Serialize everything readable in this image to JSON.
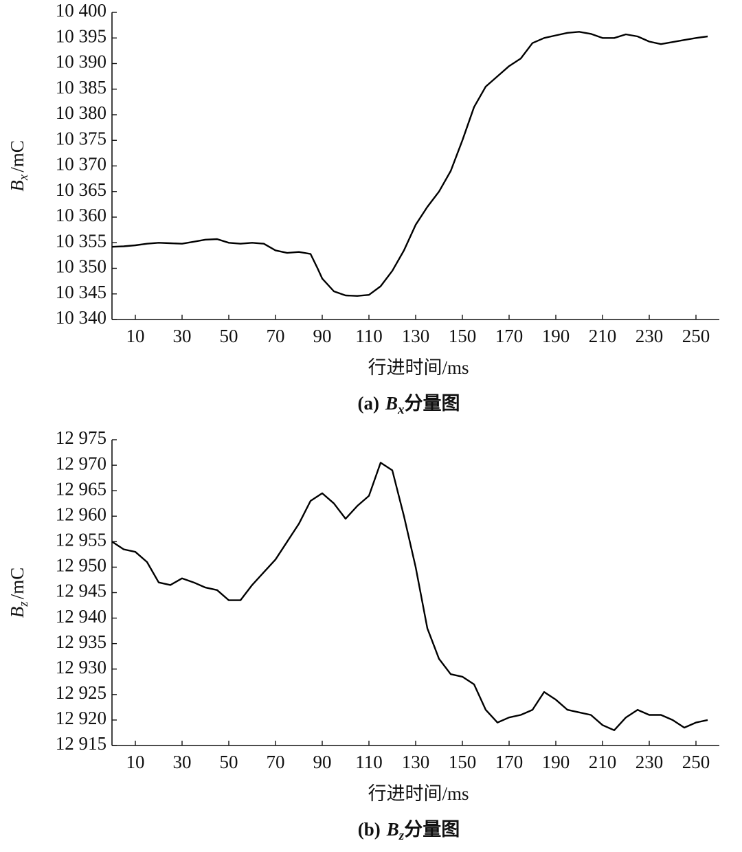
{
  "chart_data": [
    {
      "type": "line",
      "x": [
        0,
        5,
        10,
        15,
        20,
        25,
        30,
        35,
        40,
        45,
        50,
        55,
        60,
        65,
        70,
        75,
        80,
        85,
        88,
        90,
        95,
        100,
        105,
        110,
        115,
        120,
        125,
        130,
        135,
        140,
        145,
        150,
        155,
        160,
        165,
        170,
        175,
        180,
        185,
        190,
        195,
        200,
        205,
        210,
        215,
        220,
        225,
        230,
        235,
        240,
        245,
        250,
        255
      ],
      "values": [
        10354.2,
        10354.3,
        10354.5,
        10354.8,
        10355,
        10354.9,
        10354.8,
        10355.2,
        10355.6,
        10355.7,
        10355,
        10354.8,
        10355,
        10354.8,
        10353.5,
        10353,
        10353.2,
        10352.8,
        10350,
        10348,
        10345.5,
        10344.7,
        10344.6,
        10344.8,
        10346.5,
        10349.5,
        10353.5,
        10358.5,
        10362,
        10365,
        10369,
        10375,
        10381.5,
        10385.5,
        10387.5,
        10389.5,
        10391,
        10394,
        10395,
        10395.5,
        10396,
        10396.2,
        10395.8,
        10395,
        10395,
        10395.7,
        10395.3,
        10394.3,
        10393.8,
        10394.2,
        10394.6,
        10395,
        10395.3
      ],
      "color": "#000000",
      "xlim": [
        0,
        260
      ],
      "xticks": [
        10,
        30,
        50,
        70,
        90,
        110,
        130,
        150,
        170,
        190,
        210,
        230,
        250
      ],
      "ylim": [
        10340,
        10400
      ],
      "yticks": [
        {
          "value": 10340,
          "label": "10 340"
        },
        {
          "value": 10345,
          "label": "10 345"
        },
        {
          "value": 10350,
          "label": "10 350"
        },
        {
          "value": 10355,
          "label": "10 355"
        },
        {
          "value": 10360,
          "label": "10 360"
        },
        {
          "value": 10365,
          "label": "10 365"
        },
        {
          "value": 10370,
          "label": "10 370"
        },
        {
          "value": 10375,
          "label": "10 375"
        },
        {
          "value": 10380,
          "label": "10 380"
        },
        {
          "value": 10385,
          "label": "10 385"
        },
        {
          "value": 10390,
          "label": "10 390"
        },
        {
          "value": 10395,
          "label": "10 395"
        },
        {
          "value": 10400,
          "label": "10 400"
        }
      ],
      "xlabel": "行进时间/ms",
      "ylabel": {
        "symbol": "B",
        "subscript": "x",
        "unit": "/mC"
      },
      "caption": {
        "tag": "(a)",
        "symbol": "B",
        "subscript": "x",
        "text": "分量图"
      }
    },
    {
      "type": "line",
      "x": [
        0,
        5,
        10,
        15,
        20,
        25,
        30,
        35,
        40,
        45,
        50,
        55,
        60,
        65,
        70,
        75,
        80,
        85,
        90,
        95,
        100,
        105,
        110,
        115,
        120,
        125,
        130,
        135,
        140,
        145,
        150,
        155,
        160,
        165,
        170,
        175,
        180,
        185,
        190,
        195,
        200,
        205,
        210,
        215,
        220,
        225,
        230,
        235,
        240,
        245,
        250,
        255
      ],
      "values": [
        12955,
        12953.5,
        12953,
        12951,
        12947,
        12946.5,
        12947.8,
        12947,
        12946,
        12945.5,
        12943.5,
        12943.5,
        12946.5,
        12949,
        12951.5,
        12955,
        12958.5,
        12963,
        12964.5,
        12962.5,
        12959.5,
        12962,
        12964,
        12970.5,
        12969,
        12960,
        12950,
        12938,
        12932,
        12929,
        12928.5,
        12927,
        12922,
        12919.5,
        12920.5,
        12921,
        12922,
        12925.5,
        12924,
        12922,
        12921.5,
        12921,
        12919,
        12918,
        12920.5,
        12922,
        12921,
        12921,
        12920,
        12918.5,
        12919.5,
        12920
      ],
      "color": "#000000",
      "xlim": [
        0,
        260
      ],
      "xticks": [
        10,
        30,
        50,
        70,
        90,
        110,
        130,
        150,
        170,
        190,
        210,
        230,
        250
      ],
      "ylim": [
        12915,
        12975
      ],
      "yticks": [
        {
          "value": 12915,
          "label": "12 915"
        },
        {
          "value": 12920,
          "label": "12 920"
        },
        {
          "value": 12925,
          "label": "12 925"
        },
        {
          "value": 12930,
          "label": "12 930"
        },
        {
          "value": 12935,
          "label": "12 935"
        },
        {
          "value": 12940,
          "label": "12 940"
        },
        {
          "value": 12945,
          "label": "12 945"
        },
        {
          "value": 12950,
          "label": "12 950"
        },
        {
          "value": 12955,
          "label": "12 955"
        },
        {
          "value": 12960,
          "label": "12 960"
        },
        {
          "value": 12965,
          "label": "12 965"
        },
        {
          "value": 12970,
          "label": "12 970"
        },
        {
          "value": 12975,
          "label": "12 975"
        }
      ],
      "xlabel": "行进时间/ms",
      "ylabel": {
        "symbol": "B",
        "subscript": "z",
        "unit": "/mC"
      },
      "caption": {
        "tag": "(b)",
        "symbol": "B",
        "subscript": "z",
        "text": "分量图"
      }
    }
  ]
}
